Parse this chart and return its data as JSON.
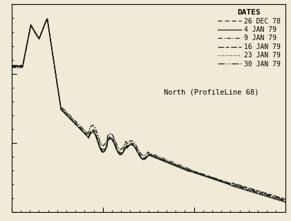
{
  "title": "North (ProfileLine 68)",
  "legend_title": "DATES",
  "legend_entries": [
    "26 DEC 78",
    "4 JAN 79",
    "9 JAN 79",
    "16 JAN 79",
    "23 JAN 79",
    "30 JAN 79"
  ],
  "background_color": "#f0ead6",
  "line_color": "#1a1a1a",
  "xlim": [
    0,
    600
  ],
  "ylim": [
    -10,
    5
  ],
  "tick_fontsize": 7,
  "title_fontsize": 7.5,
  "legend_fontsize": 7
}
